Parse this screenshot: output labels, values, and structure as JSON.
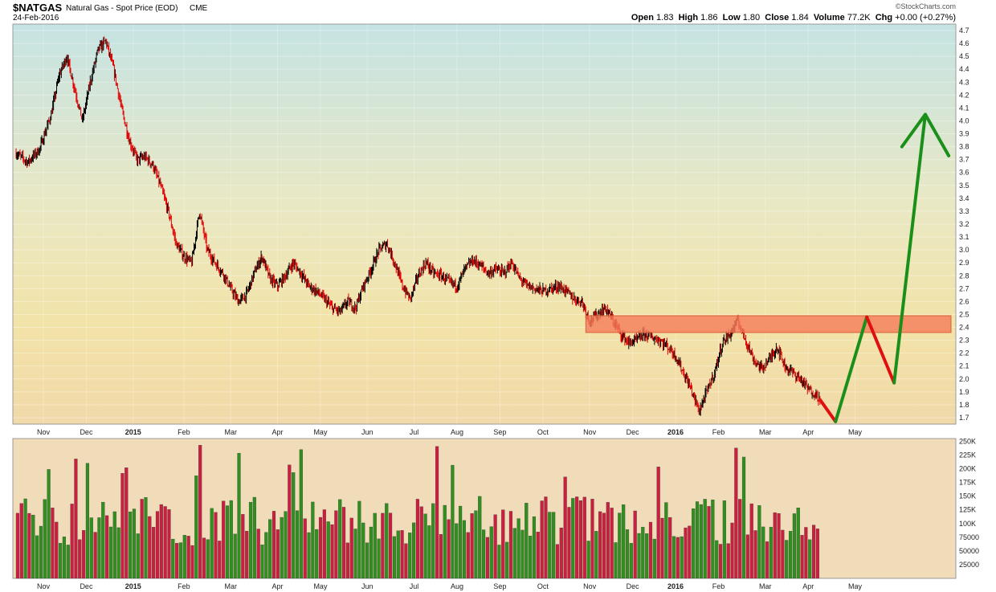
{
  "header": {
    "symbol": "$NATGAS",
    "name": "Natural Gas - Spot Price (EOD)",
    "exchange": "CME",
    "date": "24-Feb-2016",
    "watermark": "©StockCharts.com",
    "ohlc": [
      {
        "label": "Open",
        "value": "1.83"
      },
      {
        "label": "High",
        "value": "1.86"
      },
      {
        "label": "Low",
        "value": "1.80"
      },
      {
        "label": "Close",
        "value": "1.84"
      },
      {
        "label": "Volume",
        "value": "77.2K"
      },
      {
        "label": "Chg",
        "value": "+0.00 (+0.27%)"
      }
    ]
  },
  "colors": {
    "up": "#2f8f1f",
    "down": "#cc1f3f",
    "candle_down": "#e00000",
    "zone": "#f47a5a",
    "arrow_up": "#1a8f1a",
    "arrow_down": "#e01010"
  },
  "chart_data": [
    {
      "type": "candlestick",
      "panel": "price",
      "ylim": [
        1.65,
        4.75
      ],
      "y_ticks": [
        "1.7",
        "1.8",
        "1.9",
        "2.0",
        "2.1",
        "2.2",
        "2.3",
        "2.4",
        "2.5",
        "2.6",
        "2.7",
        "2.8",
        "2.9",
        "3.0",
        "3.1",
        "3.2",
        "3.3",
        "3.4",
        "3.5",
        "3.6",
        "3.7",
        "3.8",
        "3.9",
        "4.0",
        "4.1",
        "4.2",
        "4.3",
        "4.4",
        "4.5",
        "4.6",
        "4.7"
      ],
      "x_ticks": [
        {
          "label": "Nov",
          "bold": false
        },
        {
          "label": "Dec",
          "bold": false
        },
        {
          "label": "2015",
          "bold": true
        },
        {
          "label": "Feb",
          "bold": false
        },
        {
          "label": "Mar",
          "bold": false
        },
        {
          "label": "Apr",
          "bold": false
        },
        {
          "label": "May",
          "bold": false
        },
        {
          "label": "Jun",
          "bold": false
        },
        {
          "label": "Jul",
          "bold": false
        },
        {
          "label": "Aug",
          "bold": false
        },
        {
          "label": "Sep",
          "bold": false
        },
        {
          "label": "Oct",
          "bold": false
        },
        {
          "label": "Nov",
          "bold": false
        },
        {
          "label": "Dec",
          "bold": false
        },
        {
          "label": "2016",
          "bold": true
        },
        {
          "label": "Feb",
          "bold": false
        },
        {
          "label": "Mar",
          "bold": false
        },
        {
          "label": "Apr",
          "bold": false
        },
        {
          "label": "May",
          "bold": false
        }
      ],
      "close_path": [
        [
          0,
          3.75
        ],
        [
          3,
          3.68
        ],
        [
          6,
          3.78
        ],
        [
          9,
          4.05
        ],
        [
          11,
          4.35
        ],
        [
          13,
          4.5
        ],
        [
          15,
          4.25
        ],
        [
          17,
          4.0
        ],
        [
          19,
          4.3
        ],
        [
          21,
          4.55
        ],
        [
          23,
          4.62
        ],
        [
          25,
          4.4
        ],
        [
          27,
          4.1
        ],
        [
          29,
          3.85
        ],
        [
          31,
          3.7
        ],
        [
          33,
          3.72
        ],
        [
          35,
          3.66
        ],
        [
          37,
          3.5
        ],
        [
          39,
          3.3
        ],
        [
          41,
          3.05
        ],
        [
          43,
          2.95
        ],
        [
          45,
          2.9
        ],
        [
          47,
          3.3
        ],
        [
          49,
          3.0
        ],
        [
          51,
          2.9
        ],
        [
          53,
          2.82
        ],
        [
          55,
          2.7
        ],
        [
          57,
          2.6
        ],
        [
          59,
          2.65
        ],
        [
          61,
          2.82
        ],
        [
          63,
          2.95
        ],
        [
          65,
          2.78
        ],
        [
          67,
          2.72
        ],
        [
          69,
          2.8
        ],
        [
          71,
          2.9
        ],
        [
          73,
          2.82
        ],
        [
          75,
          2.72
        ],
        [
          77,
          2.68
        ],
        [
          79,
          2.62
        ],
        [
          81,
          2.55
        ],
        [
          83,
          2.52
        ],
        [
          85,
          2.6
        ],
        [
          87,
          2.55
        ],
        [
          89,
          2.72
        ],
        [
          91,
          2.85
        ],
        [
          93,
          3.0
        ],
        [
          95,
          3.05
        ],
        [
          97,
          2.9
        ],
        [
          99,
          2.72
        ],
        [
          101,
          2.62
        ],
        [
          103,
          2.8
        ],
        [
          105,
          2.9
        ],
        [
          107,
          2.82
        ],
        [
          109,
          2.8
        ],
        [
          111,
          2.75
        ],
        [
          113,
          2.72
        ],
        [
          115,
          2.85
        ],
        [
          117,
          2.92
        ],
        [
          119,
          2.88
        ],
        [
          121,
          2.82
        ],
        [
          123,
          2.85
        ],
        [
          125,
          2.82
        ],
        [
          127,
          2.9
        ],
        [
          129,
          2.78
        ],
        [
          131,
          2.72
        ],
        [
          133,
          2.7
        ],
        [
          135,
          2.68
        ],
        [
          137,
          2.7
        ],
        [
          139,
          2.72
        ],
        [
          141,
          2.68
        ],
        [
          143,
          2.62
        ],
        [
          145,
          2.6
        ],
        [
          147,
          2.45
        ],
        [
          149,
          2.5
        ],
        [
          151,
          2.55
        ],
        [
          153,
          2.45
        ],
        [
          155,
          2.35
        ],
        [
          157,
          2.28
        ],
        [
          159,
          2.3
        ],
        [
          161,
          2.35
        ],
        [
          163,
          2.32
        ],
        [
          165,
          2.3
        ],
        [
          167,
          2.25
        ],
        [
          169,
          2.18
        ],
        [
          171,
          2.05
        ],
        [
          173,
          1.92
        ],
        [
          175,
          1.75
        ],
        [
          177,
          1.9
        ],
        [
          179,
          2.05
        ],
        [
          181,
          2.28
        ],
        [
          183,
          2.35
        ],
        [
          185,
          2.45
        ],
        [
          187,
          2.3
        ],
        [
          189,
          2.15
        ],
        [
          191,
          2.08
        ],
        [
          193,
          2.15
        ],
        [
          195,
          2.25
        ],
        [
          197,
          2.1
        ],
        [
          199,
          2.05
        ],
        [
          201,
          2.0
        ],
        [
          203,
          1.92
        ],
        [
          205,
          1.88
        ],
        [
          206,
          1.84
        ]
      ],
      "resistance_zone": {
        "low": 2.36,
        "high": 2.49
      },
      "projection": [
        {
          "x": 206,
          "y": 1.84,
          "color": "down"
        },
        {
          "x": 210,
          "y": 1.67,
          "color": "down"
        },
        {
          "x": 218,
          "y": 2.48,
          "color": "up"
        },
        {
          "x": 225,
          "y": 1.97,
          "color": "down"
        },
        {
          "x": 233,
          "y": 4.05,
          "color": "up"
        }
      ],
      "projection_arrow_head": [
        [
          227,
          3.8
        ],
        [
          233,
          4.05
        ],
        [
          239,
          3.73
        ]
      ]
    },
    {
      "type": "bar",
      "panel": "volume",
      "ylim": [
        0,
        255000
      ],
      "y_ticks": [
        "250K",
        "225K",
        "200K",
        "175K",
        "150K",
        "125K",
        "100K",
        "75000",
        "50000",
        "25000"
      ],
      "bars": 207,
      "pattern": "alternating green/red daily volume bars, mostly 60K-150K with spikes near 245K"
    }
  ]
}
